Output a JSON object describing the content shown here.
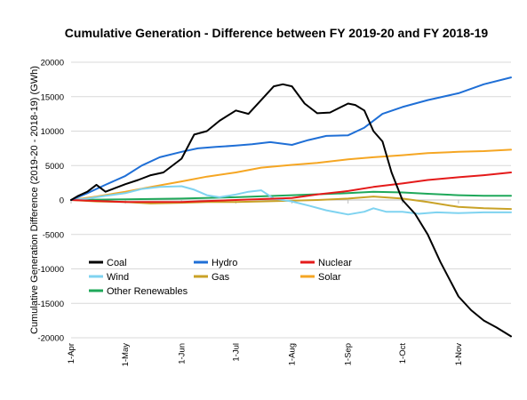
{
  "chart_data": {
    "type": "line",
    "title": "Cumulative Generation - Difference between FY 2019-20 and FY 2018-19",
    "ylabel": "Cumulative Generation Difference (2019-20 - 2018-19) (GWh)",
    "xlabel": "",
    "ylim": [
      -20000,
      20000
    ],
    "y_ticks": [
      20000,
      15000,
      10000,
      5000,
      0,
      -5000,
      -10000,
      -15000,
      -20000
    ],
    "y_tick_labels": [
      "20000",
      "15000",
      "10000",
      "5000",
      "0",
      "-5000",
      "-10000",
      "-15000",
      "-20000"
    ],
    "x_ticks": [
      "1-Apr",
      "1-May",
      "1-Jun",
      "1-Jul",
      "1-Aug",
      "1-Sep",
      "1-Oct",
      "1-Nov"
    ],
    "x_range": [
      "1-Apr",
      "30-Nov"
    ],
    "grid": "horizontal",
    "legend_placement": "lower-left",
    "series": [
      {
        "name": "Coal",
        "color": "#000000",
        "x": [
          "1-Apr",
          "5-Apr",
          "10-Apr",
          "15-Apr",
          "20-Apr",
          "25-Apr",
          "1-May",
          "8-May",
          "15-May",
          "22-May",
          "1-Jun",
          "8-Jun",
          "15-Jun",
          "22-Jun",
          "1-Jul",
          "8-Jul",
          "15-Jul",
          "22-Jul",
          "27-Jul",
          "1-Aug",
          "8-Aug",
          "15-Aug",
          "22-Aug",
          "1-Sep",
          "5-Sep",
          "10-Sep",
          "15-Sep",
          "20-Sep",
          "25-Sep",
          "1-Oct",
          "8-Oct",
          "15-Oct",
          "22-Oct",
          "1-Nov",
          "8-Nov",
          "15-Nov",
          "22-Nov",
          "30-Nov"
        ],
        "y": [
          0,
          600,
          1200,
          2200,
          1200,
          1700,
          2300,
          2900,
          3600,
          4000,
          6000,
          9500,
          10000,
          11500,
          13000,
          12500,
          14500,
          16500,
          16800,
          16500,
          14000,
          12600,
          12700,
          14000,
          13800,
          13000,
          10000,
          8500,
          4000,
          0,
          -2000,
          -5000,
          -9000,
          -14000,
          -16000,
          -17500,
          -18500,
          -19800
        ]
      },
      {
        "name": "Hydro",
        "color": "#1f6fd6",
        "x": [
          "1-Apr",
          "10-Apr",
          "20-Apr",
          "1-May",
          "10-May",
          "20-May",
          "1-Jun",
          "10-Jun",
          "20-Jun",
          "1-Jul",
          "10-Jul",
          "20-Jul",
          "1-Aug",
          "10-Aug",
          "20-Aug",
          "1-Sep",
          "10-Sep",
          "20-Sep",
          "1-Oct",
          "15-Oct",
          "1-Nov",
          "15-Nov",
          "30-Nov"
        ],
        "y": [
          0,
          1000,
          2200,
          3500,
          5000,
          6200,
          7000,
          7500,
          7700,
          7900,
          8100,
          8400,
          8000,
          8700,
          9300,
          9400,
          10500,
          12500,
          13500,
          14500,
          15500,
          16800,
          17800
        ]
      },
      {
        "name": "Nuclear",
        "color": "#e41a1a",
        "x": [
          "1-Apr",
          "1-May",
          "1-Jun",
          "1-Jul",
          "1-Aug",
          "15-Aug",
          "1-Sep",
          "15-Sep",
          "1-Oct",
          "15-Oct",
          "1-Nov",
          "15-Nov",
          "30-Nov"
        ],
        "y": [
          0,
          -300,
          -300,
          0,
          300,
          800,
          1300,
          1900,
          2400,
          2900,
          3300,
          3600,
          4000
        ]
      },
      {
        "name": "Wind",
        "color": "#7fd3f0",
        "x": [
          "1-Apr",
          "10-Apr",
          "20-Apr",
          "1-May",
          "10-May",
          "20-May",
          "1-Jun",
          "8-Jun",
          "15-Jun",
          "22-Jun",
          "1-Jul",
          "8-Jul",
          "15-Jul",
          "22-Jul",
          "1-Aug",
          "10-Aug",
          "20-Aug",
          "1-Sep",
          "10-Sep",
          "15-Sep",
          "22-Sep",
          "1-Oct",
          "10-Oct",
          "20-Oct",
          "1-Nov",
          "15-Nov",
          "30-Nov"
        ],
        "y": [
          0,
          200,
          600,
          1000,
          1600,
          1900,
          2000,
          1500,
          700,
          400,
          800,
          1200,
          1400,
          200,
          -200,
          -800,
          -1500,
          -2100,
          -1700,
          -1200,
          -1700,
          -1700,
          -2000,
          -1800,
          -1900,
          -1800,
          -1800
        ]
      },
      {
        "name": "Gas",
        "color": "#c9a227",
        "x": [
          "1-Apr",
          "15-Apr",
          "1-May",
          "15-May",
          "1-Jun",
          "15-Jun",
          "1-Jul",
          "15-Jul",
          "1-Aug",
          "15-Aug",
          "1-Sep",
          "15-Sep",
          "1-Oct",
          "15-Oct",
          "1-Nov",
          "15-Nov",
          "30-Nov"
        ],
        "y": [
          0,
          -200,
          -300,
          -500,
          -400,
          -300,
          -300,
          -200,
          -100,
          0,
          200,
          500,
          200,
          -300,
          -1000,
          -1200,
          -1300
        ]
      },
      {
        "name": "Solar",
        "color": "#f5a623",
        "x": [
          "1-Apr",
          "15-Apr",
          "1-May",
          "15-May",
          "1-Jun",
          "15-Jun",
          "1-Jul",
          "15-Jul",
          "1-Aug",
          "15-Aug",
          "1-Sep",
          "15-Sep",
          "1-Oct",
          "15-Oct",
          "1-Nov",
          "15-Nov",
          "30-Nov"
        ],
        "y": [
          0,
          500,
          1200,
          1900,
          2700,
          3400,
          4000,
          4700,
          5100,
          5400,
          5900,
          6200,
          6500,
          6800,
          7000,
          7100,
          7300
        ]
      },
      {
        "name": "Other Renewables",
        "color": "#1fa85a",
        "x": [
          "1-Apr",
          "1-May",
          "1-Jun",
          "1-Jul",
          "1-Aug",
          "1-Sep",
          "15-Sep",
          "1-Oct",
          "15-Oct",
          "1-Nov",
          "15-Nov",
          "30-Nov"
        ],
        "y": [
          0,
          100,
          200,
          400,
          700,
          1000,
          1200,
          1100,
          900,
          700,
          600,
          600
        ]
      }
    ]
  }
}
